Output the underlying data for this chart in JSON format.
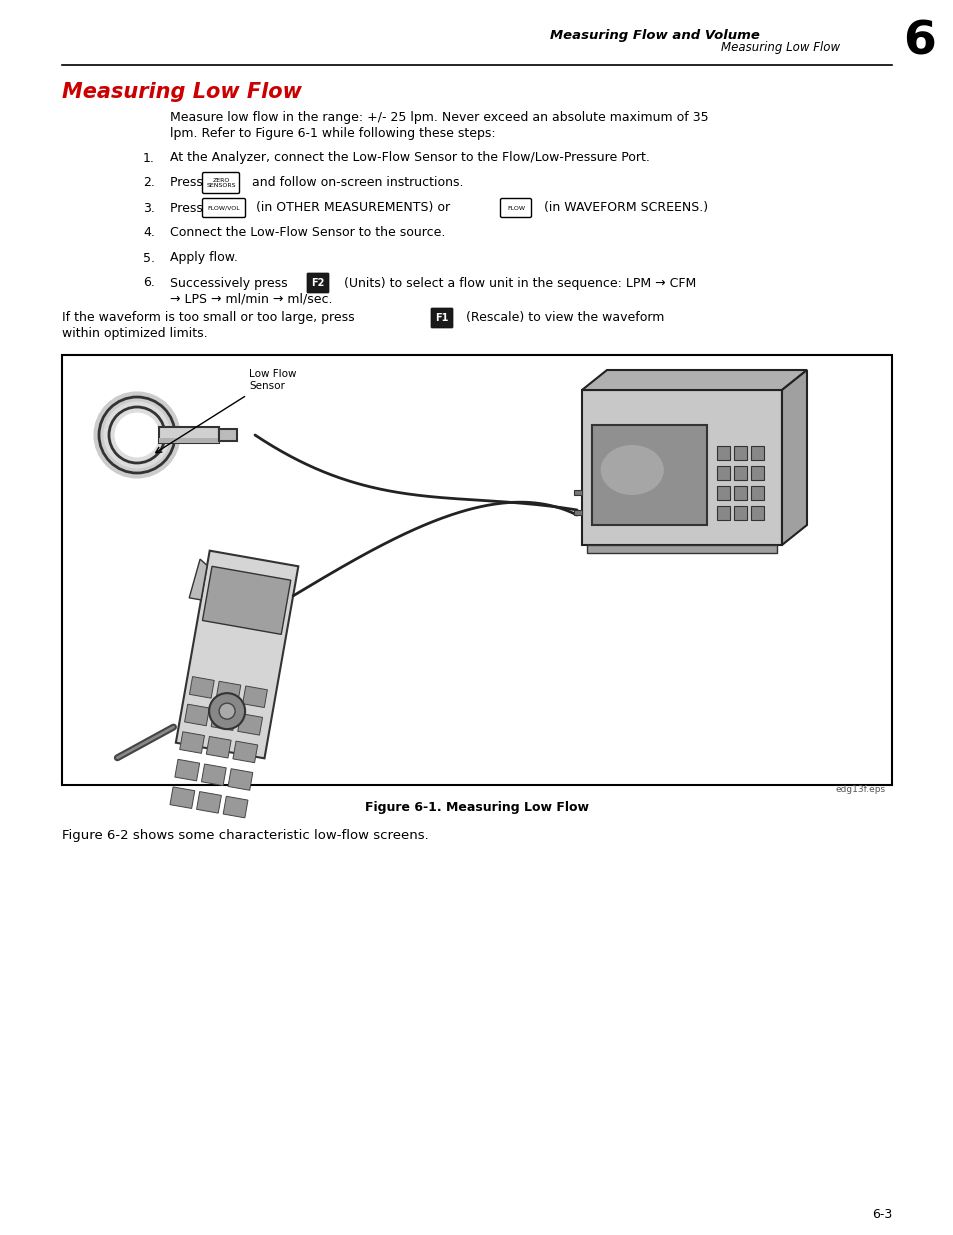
{
  "page_bg": "#ffffff",
  "header_chapter": "Measuring Flow and Volume",
  "header_section": "Measuring Low Flow",
  "header_number": "6",
  "title": "Measuring Low Flow",
  "title_color": "#cc0000",
  "intro_line1": "Measure low flow in the range: +/- 25 lpm. Never exceed an absolute maximum of 35",
  "intro_line2": "lpm. Refer to Figure 6-1 while following these steps:",
  "step1": "At the Analyzer, connect the Low-Flow Sensor to the Flow/Low-Pressure Port.",
  "step2a": "Press ",
  "step2b": " and follow on-screen instructions.",
  "step3a": "Press ",
  "step3b": " (in OTHER MEASUREMENTS) or ",
  "step3c": " (in WAVEFORM SCREENS.)",
  "step4": "Connect the Low-Flow Sensor to the source.",
  "step5": "Apply flow.",
  "step6a": "Successively press ",
  "step6b": " (Units) to select a flow unit in the sequence: LPM → CFM",
  "step6c": "→ LPS → ml/min → ml/sec.",
  "rescale1": "If the waveform is too small or too large, press ",
  "rescale1b": " (Rescale) to view the waveform",
  "rescale2": "within optimized limits.",
  "figure_caption": "Figure 6-1. Measuring Low Flow",
  "figure_note": "edg13f.eps",
  "footer_text": "Figure 6-2 shows some characteristic low-flow screens.",
  "page_number": "6-3"
}
